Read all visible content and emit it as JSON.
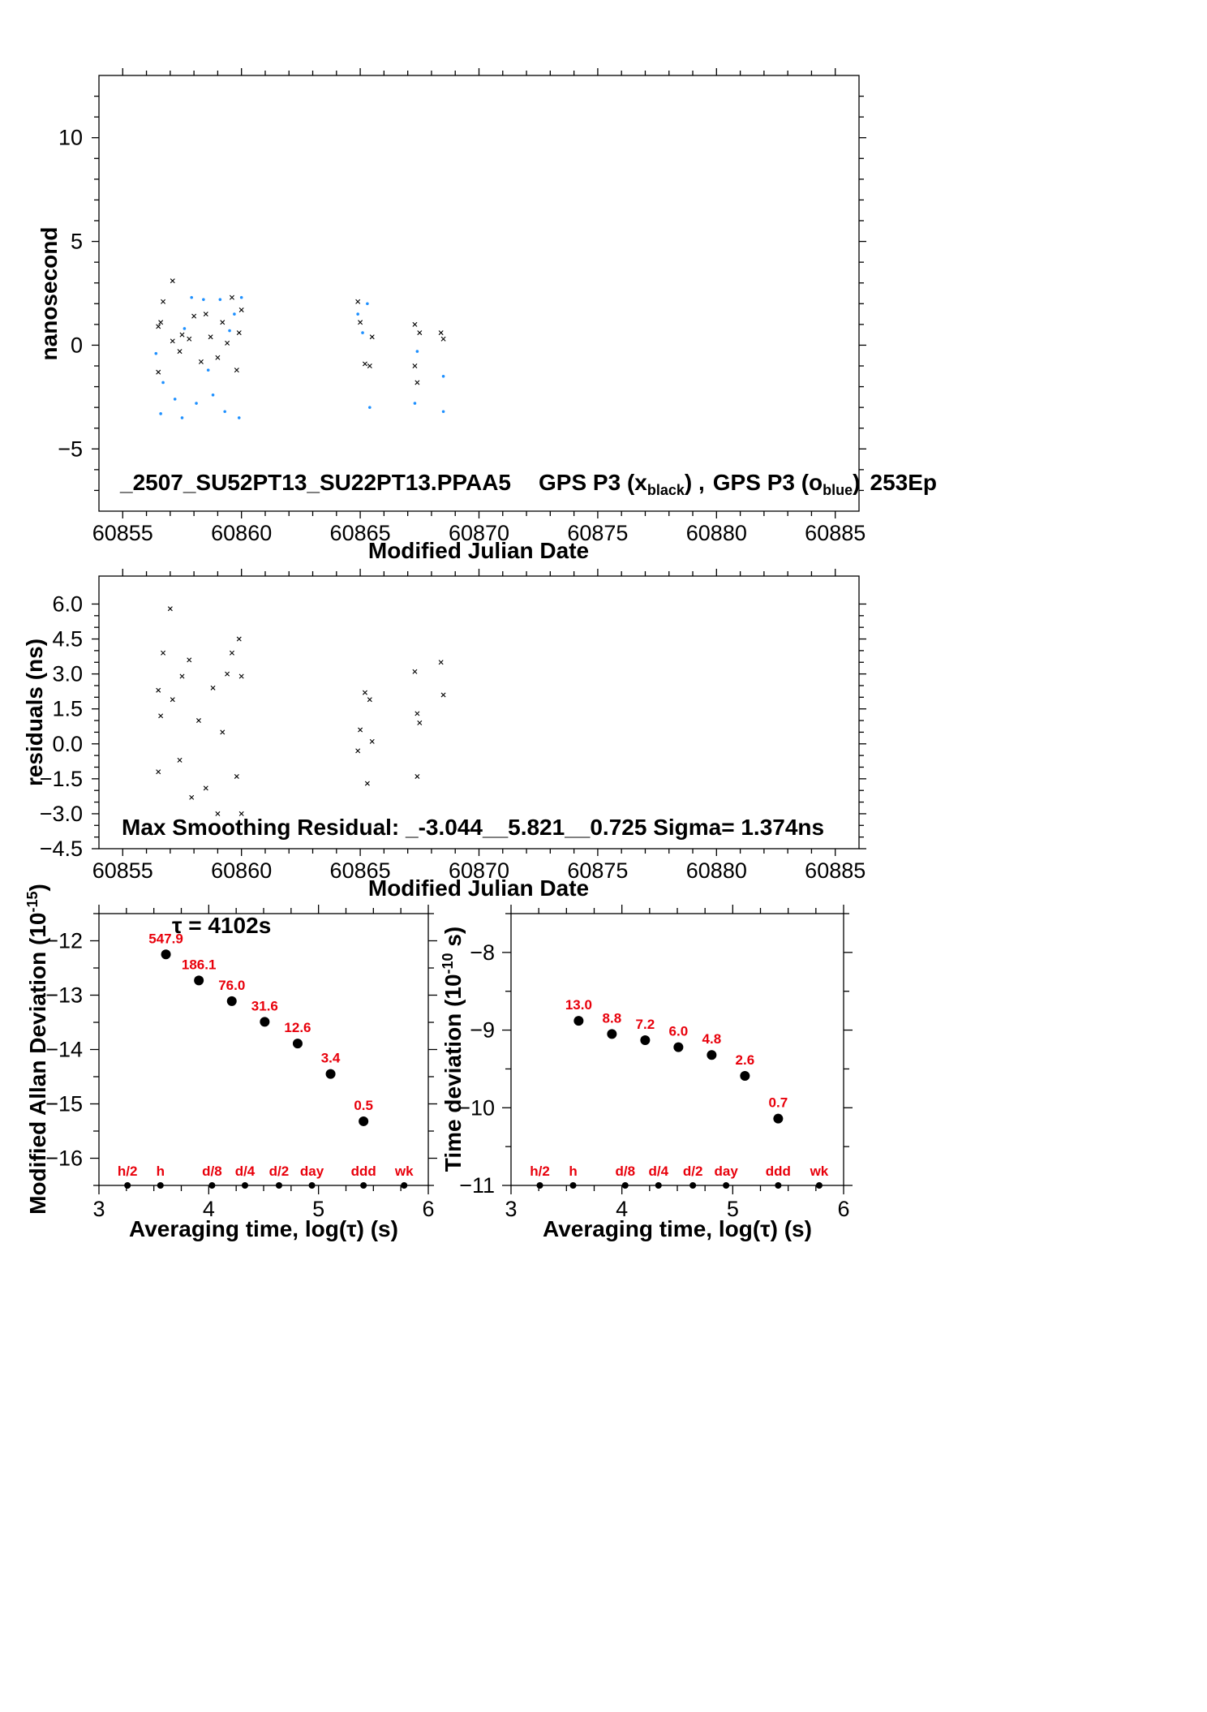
{
  "colors": {
    "black_series": "#000000",
    "blue_series": "#1e90ff",
    "point_labels": "#e8000b"
  },
  "chart_data": [
    {
      "type": "scatter",
      "xlabel": "Modified Julian Date",
      "ylabel": "nanosecond",
      "xlim": [
        60854,
        60886
      ],
      "ylim": [
        -8,
        13
      ],
      "xticks": [
        "60855",
        "60860",
        "60865",
        "60870",
        "60875",
        "60880",
        "60885"
      ],
      "yticks": [
        "−5",
        "0",
        "5",
        "10"
      ],
      "annotation": {
        "file": "_2507_SU52PT13_SU22PT13.PPAA5",
        "series_a": "GPS P3 (x",
        "series_a_sub": "black",
        "series_a_close": ") ,",
        "series_b": "GPS P3 (o",
        "series_b_sub": "blue",
        "series_b_close": ")",
        "epochs": "253Ep"
      },
      "series": [
        {
          "marker": "x",
          "color": "black",
          "values": [
            [
              60856.5,
              0.9
            ],
            [
              60856.5,
              -1.3
            ],
            [
              60856.6,
              1.1
            ],
            [
              60856.7,
              2.1
            ],
            [
              60857.1,
              3.1
            ],
            [
              60857.1,
              0.2
            ],
            [
              60857.4,
              -0.3
            ],
            [
              60857.5,
              0.5
            ],
            [
              60857.8,
              0.3
            ],
            [
              60858.0,
              1.4
            ],
            [
              60858.3,
              -0.8
            ],
            [
              60858.5,
              1.5
            ],
            [
              60858.7,
              0.4
            ],
            [
              60859.0,
              -0.6
            ],
            [
              60859.2,
              1.1
            ],
            [
              60859.4,
              0.1
            ],
            [
              60859.6,
              2.3
            ],
            [
              60859.8,
              -1.2
            ],
            [
              60859.9,
              0.6
            ],
            [
              60860.0,
              1.7
            ],
            [
              60864.9,
              2.1
            ],
            [
              60865.0,
              1.1
            ],
            [
              60865.2,
              -0.9
            ],
            [
              60865.4,
              -1.0
            ],
            [
              60865.5,
              0.4
            ],
            [
              60867.3,
              1.0
            ],
            [
              60867.3,
              -1.0
            ],
            [
              60867.4,
              -1.8
            ],
            [
              60867.5,
              0.6
            ],
            [
              60868.4,
              0.6
            ],
            [
              60868.5,
              0.3
            ]
          ]
        },
        {
          "marker": "o",
          "color": "blue",
          "values": [
            [
              60856.4,
              -0.4
            ],
            [
              60856.6,
              -3.3
            ],
            [
              60856.7,
              -1.8
            ],
            [
              60857.2,
              -2.6
            ],
            [
              60857.5,
              -3.5
            ],
            [
              60857.6,
              0.8
            ],
            [
              60857.9,
              2.3
            ],
            [
              60858.1,
              -2.8
            ],
            [
              60858.4,
              2.2
            ],
            [
              60858.6,
              -1.2
            ],
            [
              60858.8,
              -2.4
            ],
            [
              60859.1,
              2.2
            ],
            [
              60859.3,
              -3.2
            ],
            [
              60859.5,
              0.7
            ],
            [
              60859.7,
              1.5
            ],
            [
              60859.9,
              -3.5
            ],
            [
              60860.0,
              2.3
            ],
            [
              60864.9,
              1.5
            ],
            [
              60865.1,
              0.6
            ],
            [
              60865.3,
              2.0
            ],
            [
              60865.4,
              -3.0
            ],
            [
              60867.3,
              -2.8
            ],
            [
              60867.4,
              -0.3
            ],
            [
              60868.5,
              -1.5
            ],
            [
              60868.5,
              -3.2
            ]
          ]
        }
      ]
    },
    {
      "type": "scatter",
      "xlabel": "Modified Julian Date",
      "ylabel": "residuals (ns)",
      "xlim": [
        60854,
        60886
      ],
      "ylim": [
        -4.5,
        7.2
      ],
      "xticks": [
        "60855",
        "60860",
        "60865",
        "60870",
        "60875",
        "60880",
        "60885"
      ],
      "yticks": [
        "−4.5",
        "−3.0",
        "−1.5",
        "0.0",
        "1.5",
        "3.0",
        "4.5",
        "6.0"
      ],
      "annotation": "Max Smoothing Residual: _-3.044__5.821__0.725  Sigma= 1.374ns",
      "series": [
        {
          "marker": "x",
          "color": "black",
          "values": [
            [
              60856.5,
              2.3
            ],
            [
              60856.5,
              -1.2
            ],
            [
              60856.6,
              1.2
            ],
            [
              60856.7,
              3.9
            ],
            [
              60857.0,
              5.8
            ],
            [
              60857.1,
              1.9
            ],
            [
              60857.4,
              -0.7
            ],
            [
              60857.5,
              2.9
            ],
            [
              60857.8,
              3.6
            ],
            [
              60857.9,
              -2.3
            ],
            [
              60858.2,
              1.0
            ],
            [
              60858.5,
              -1.9
            ],
            [
              60858.8,
              2.4
            ],
            [
              60859.0,
              -3.0
            ],
            [
              60859.2,
              0.5
            ],
            [
              60859.4,
              3.0
            ],
            [
              60859.6,
              3.9
            ],
            [
              60859.8,
              -1.4
            ],
            [
              60859.9,
              4.5
            ],
            [
              60860.0,
              -3.0
            ],
            [
              60860.0,
              2.9
            ],
            [
              60864.9,
              -0.3
            ],
            [
              60865.0,
              0.6
            ],
            [
              60865.2,
              2.2
            ],
            [
              60865.3,
              -1.7
            ],
            [
              60865.4,
              1.9
            ],
            [
              60865.5,
              0.1
            ],
            [
              60867.3,
              3.1
            ],
            [
              60867.4,
              1.3
            ],
            [
              60867.4,
              -1.4
            ],
            [
              60867.5,
              0.9
            ],
            [
              60868.4,
              3.5
            ],
            [
              60868.5,
              2.1
            ]
          ]
        }
      ]
    },
    {
      "type": "scatter",
      "xlabel": "Averaging time, log(τ) (s)",
      "ylabel_main": "Modified Allan Deviation (10",
      "ylabel_sup": "-15",
      "ylabel_close": ")",
      "xlim": [
        3,
        6
      ],
      "ylim": [
        -16.5,
        -11.5
      ],
      "xticks": [
        "3",
        "4",
        "5",
        "6"
      ],
      "yticks": [
        "−16",
        "−15",
        "−14",
        "−13",
        "−12"
      ],
      "tau_note": "τ = 4102s",
      "points": [
        {
          "x": 3.61,
          "y": -12.25,
          "label": "547.9"
        },
        {
          "x": 3.91,
          "y": -12.73,
          "label": "186.1"
        },
        {
          "x": 4.21,
          "y": -13.11,
          "label": "76.0"
        },
        {
          "x": 4.51,
          "y": -13.49,
          "label": "31.6"
        },
        {
          "x": 4.81,
          "y": -13.89,
          "label": "12.6"
        },
        {
          "x": 5.11,
          "y": -14.45,
          "label": "3.4"
        },
        {
          "x": 5.41,
          "y": -15.32,
          "label": "0.5"
        }
      ],
      "markers": [
        {
          "x": 3.26,
          "label": "h/2"
        },
        {
          "x": 3.56,
          "label": "h"
        },
        {
          "x": 4.03,
          "label": "d/8"
        },
        {
          "x": 4.33,
          "label": "d/4"
        },
        {
          "x": 4.64,
          "label": "d/2"
        },
        {
          "x": 4.94,
          "label": "day"
        },
        {
          "x": 5.41,
          "label": "ddd"
        },
        {
          "x": 5.78,
          "label": "wk"
        }
      ]
    },
    {
      "type": "scatter",
      "xlabel": "Averaging time, log(τ) (s)",
      "ylabel_main": "Time deviation (10",
      "ylabel_sup": "-10",
      "ylabel_close": " s)",
      "xlim": [
        3,
        6
      ],
      "ylim": [
        -11,
        -7.5
      ],
      "xticks": [
        "3",
        "4",
        "5",
        "6"
      ],
      "yticks": [
        "−11",
        "−10",
        "−9",
        "−8"
      ],
      "points": [
        {
          "x": 3.61,
          "y": -8.88,
          "label": "13.0"
        },
        {
          "x": 3.91,
          "y": -9.05,
          "label": "8.8"
        },
        {
          "x": 4.21,
          "y": -9.13,
          "label": "7.2"
        },
        {
          "x": 4.51,
          "y": -9.22,
          "label": "6.0"
        },
        {
          "x": 4.81,
          "y": -9.32,
          "label": "4.8"
        },
        {
          "x": 5.11,
          "y": -9.59,
          "label": "2.6"
        },
        {
          "x": 5.41,
          "y": -10.14,
          "label": "0.7"
        }
      ],
      "markers": [
        {
          "x": 3.26,
          "label": "h/2"
        },
        {
          "x": 3.56,
          "label": "h"
        },
        {
          "x": 4.03,
          "label": "d/8"
        },
        {
          "x": 4.33,
          "label": "d/4"
        },
        {
          "x": 4.64,
          "label": "d/2"
        },
        {
          "x": 4.94,
          "label": "day"
        },
        {
          "x": 5.41,
          "label": "ddd"
        },
        {
          "x": 5.78,
          "label": "wk"
        }
      ]
    }
  ]
}
